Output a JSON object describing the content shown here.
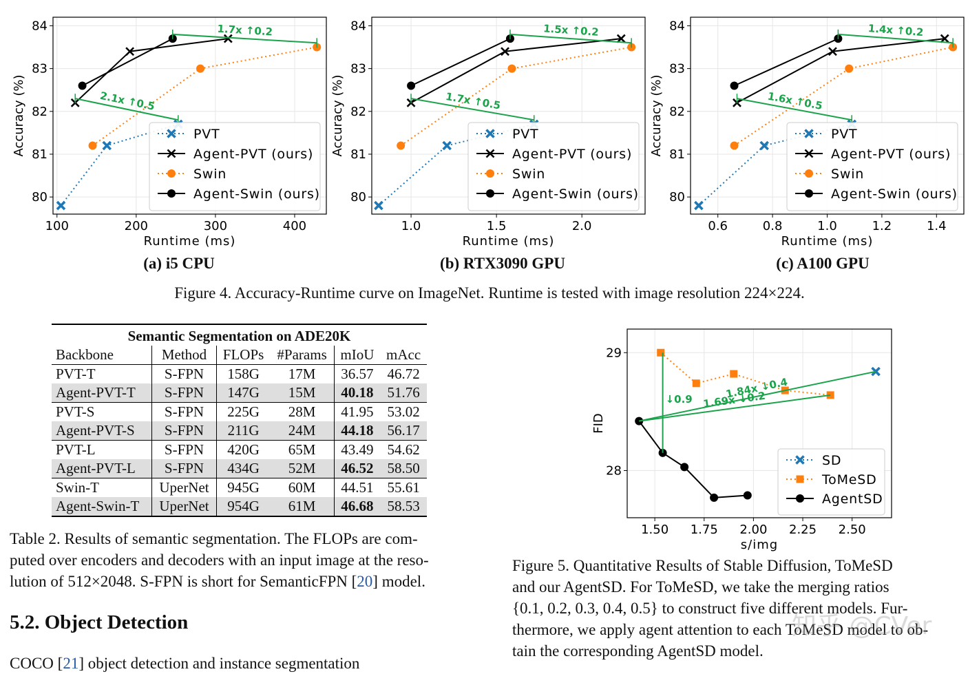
{
  "chart_data": [
    {
      "type": "line",
      "id": "a",
      "caption": "(a) i5 CPU",
      "xlabel": "Runtime (ms)",
      "ylabel": "Accuracy (%)",
      "xlim": [
        95,
        440
      ],
      "ylim": [
        79.6,
        84.2
      ],
      "xticks": [
        100,
        200,
        300,
        400
      ],
      "xtick_labels": [
        "100",
        "200",
        "300",
        "400"
      ],
      "yticks": [
        80,
        81,
        82,
        83,
        84
      ],
      "series": [
        {
          "name": "PVT",
          "color": "#1f77b4",
          "style": "dotted",
          "marker": "X",
          "x": [
            105,
            163,
            253
          ],
          "y": [
            79.8,
            81.2,
            81.7
          ]
        },
        {
          "name": "Agent-PVT (ours)",
          "color": "#000000",
          "style": "solid",
          "marker": "x",
          "x": [
            123,
            192,
            316
          ],
          "y": [
            82.2,
            83.4,
            83.7
          ]
        },
        {
          "name": "Swin",
          "color": "#ff7f0e",
          "style": "dotted",
          "marker": "o",
          "x": [
            145,
            281,
            428
          ],
          "y": [
            81.2,
            83.0,
            83.5
          ]
        },
        {
          "name": "Agent-Swin (ours)",
          "color": "#000000",
          "style": "solid",
          "marker": "o",
          "x": [
            132,
            246
          ],
          "y": [
            82.6,
            83.7
          ]
        }
      ],
      "annotations": [
        {
          "text": "2.1x ↑0.5",
          "from": [
            123,
            82.3
          ],
          "to": [
            253,
            81.8
          ]
        },
        {
          "text": "1.7x ↑0.2",
          "from": [
            246,
            83.8
          ],
          "to": [
            428,
            83.6
          ]
        }
      ]
    },
    {
      "type": "line",
      "id": "b",
      "caption": "(b) RTX3090 GPU",
      "xlabel": "Runtime (ms)",
      "ylabel": "Accuracy (%)",
      "xlim": [
        0.77,
        2.37
      ],
      "ylim": [
        79.6,
        84.2
      ],
      "xticks": [
        1.0,
        1.5,
        2.0
      ],
      "xtick_labels": [
        "1.0",
        "1.5",
        "2.0"
      ],
      "yticks": [
        80,
        81,
        82,
        83,
        84
      ],
      "series": [
        {
          "name": "PVT",
          "color": "#1f77b4",
          "style": "dotted",
          "marker": "X",
          "x": [
            0.81,
            1.21,
            1.72
          ],
          "y": [
            79.8,
            81.2,
            81.7
          ]
        },
        {
          "name": "Agent-PVT (ours)",
          "color": "#000000",
          "style": "solid",
          "marker": "x",
          "x": [
            1.0,
            1.55,
            2.23
          ],
          "y": [
            82.2,
            83.4,
            83.7
          ]
        },
        {
          "name": "Swin",
          "color": "#ff7f0e",
          "style": "dotted",
          "marker": "o",
          "x": [
            0.94,
            1.59,
            2.29
          ],
          "y": [
            81.2,
            83.0,
            83.5
          ]
        },
        {
          "name": "Agent-Swin (ours)",
          "color": "#000000",
          "style": "solid",
          "marker": "o",
          "x": [
            1.0,
            1.58
          ],
          "y": [
            82.6,
            83.7
          ]
        }
      ],
      "annotations": [
        {
          "text": "1.7x ↑0.5",
          "from": [
            1.0,
            82.3
          ],
          "to": [
            1.72,
            81.8
          ]
        },
        {
          "text": "1.5x ↑0.2",
          "from": [
            1.58,
            83.8
          ],
          "to": [
            2.29,
            83.6
          ]
        }
      ]
    },
    {
      "type": "line",
      "id": "c",
      "caption": "(c) A100 GPU",
      "xlabel": "Runtime (ms)",
      "ylabel": "Accuracy (%)",
      "xlim": [
        0.5,
        1.5
      ],
      "ylim": [
        79.6,
        84.2
      ],
      "xticks": [
        0.6,
        0.8,
        1.0,
        1.2,
        1.4
      ],
      "xtick_labels": [
        "0.6",
        "0.8",
        "1.0",
        "1.2",
        "1.4"
      ],
      "yticks": [
        80,
        81,
        82,
        83,
        84
      ],
      "series": [
        {
          "name": "PVT",
          "color": "#1f77b4",
          "style": "dotted",
          "marker": "X",
          "x": [
            0.53,
            0.77,
            1.09
          ],
          "y": [
            79.8,
            81.2,
            81.7
          ]
        },
        {
          "name": "Agent-PVT (ours)",
          "color": "#000000",
          "style": "solid",
          "marker": "x",
          "x": [
            0.67,
            1.02,
            1.43
          ],
          "y": [
            82.2,
            83.4,
            83.7
          ]
        },
        {
          "name": "Swin",
          "color": "#ff7f0e",
          "style": "dotted",
          "marker": "o",
          "x": [
            0.66,
            1.08,
            1.46
          ],
          "y": [
            81.2,
            83.0,
            83.5
          ]
        },
        {
          "name": "Agent-Swin (ours)",
          "color": "#000000",
          "style": "solid",
          "marker": "o",
          "x": [
            0.66,
            1.04
          ],
          "y": [
            82.6,
            83.7
          ]
        }
      ],
      "annotations": [
        {
          "text": "1.6x ↑0.5",
          "from": [
            0.67,
            82.3
          ],
          "to": [
            1.09,
            81.8
          ]
        },
        {
          "text": "1.4x ↑0.2",
          "from": [
            1.04,
            83.8
          ],
          "to": [
            1.46,
            83.6
          ]
        }
      ]
    },
    {
      "type": "line",
      "id": "fid",
      "xlabel": "s/img",
      "ylabel": "FID",
      "xlim": [
        1.36,
        2.7
      ],
      "ylim": [
        27.6,
        29.2
      ],
      "xticks": [
        1.5,
        1.75,
        2.0,
        2.25,
        2.5
      ],
      "xtick_labels": [
        "1.50",
        "1.75",
        "2.00",
        "2.25",
        "2.50"
      ],
      "yticks": [
        28,
        29
      ],
      "series": [
        {
          "name": "SD",
          "color": "#1f77b4",
          "style": "dotted",
          "marker": "X",
          "x": [
            2.62
          ],
          "y": [
            28.84
          ]
        },
        {
          "name": "ToMeSD",
          "color": "#ff7f0e",
          "style": "dotted",
          "marker": "s",
          "x": [
            1.53,
            1.71,
            1.9,
            2.16,
            2.39
          ],
          "y": [
            29.0,
            28.74,
            28.82,
            28.68,
            28.64
          ]
        },
        {
          "name": "AgentSD",
          "color": "#000000",
          "style": "solid",
          "marker": "o",
          "x": [
            1.42,
            1.54,
            1.65,
            1.8,
            1.97
          ],
          "y": [
            28.42,
            28.15,
            28.03,
            27.77,
            27.79
          ]
        }
      ],
      "annotations": [
        {
          "text": "↓0.9",
          "from": [
            1.54,
            29.0
          ],
          "to": [
            1.54,
            28.15
          ]
        },
        {
          "text": "1.84x ↓0.4",
          "from": [
            2.62,
            28.84
          ],
          "to": [
            1.42,
            28.42
          ]
        },
        {
          "text": "1.69x ↓0.2",
          "from": [
            2.39,
            28.64
          ],
          "to": [
            1.42,
            28.42
          ]
        }
      ]
    }
  ],
  "figure4_caption": "Figure 4. Accuracy-Runtime curve on ImageNet. Runtime is tested with image resolution 224×224.",
  "table2": {
    "title": "Semantic Segmentation on ADE20K",
    "headers": [
      "Backbone",
      "Method",
      "FLOPs",
      "#Params",
      "mIoU",
      "mAcc"
    ],
    "rows": [
      [
        "PVT-T",
        "S-FPN",
        "158G",
        "17M",
        "36.57",
        "46.72"
      ],
      [
        "Agent-PVT-T",
        "S-FPN",
        "147G",
        "15M",
        "40.18",
        "51.76"
      ],
      [
        "PVT-S",
        "S-FPN",
        "225G",
        "28M",
        "41.95",
        "53.02"
      ],
      [
        "Agent-PVT-S",
        "S-FPN",
        "211G",
        "24M",
        "44.18",
        "56.17"
      ],
      [
        "PVT-L",
        "S-FPN",
        "420G",
        "65M",
        "43.49",
        "54.62"
      ],
      [
        "Agent-PVT-L",
        "S-FPN",
        "434G",
        "52M",
        "46.52",
        "58.50"
      ],
      [
        "Swin-T",
        "UperNet",
        "945G",
        "60M",
        "44.51",
        "55.61"
      ],
      [
        "Agent-Swin-T",
        "UperNet",
        "954G",
        "61M",
        "46.68",
        "58.53"
      ]
    ],
    "caption_line1": "Table 2. Results of semantic segmentation. The FLOPs are com-",
    "caption_line2": "puted over encoders and decoders with an input image at the reso-",
    "caption_line3a": "lution of 512×2048. S-FPN is short for SemanticFPN [",
    "caption_ref": "20",
    "caption_line3b": "] model."
  },
  "section_title": "5.2. Object Detection",
  "body_line_start": "COCO [",
  "body_ref": "21",
  "body_line_rest": "] object detection and instance segmentation",
  "figure5_caption": {
    "line1": "Figure 5.   Quantitative Results of Stable Diffusion, ToMeSD",
    "line2": "and our AgentSD. For ToMeSD, we take the merging ratios",
    "line3": "{0.1, 0.2, 0.3, 0.4, 0.5} to construct five different models. Fur-",
    "line4": "thermore, we apply agent attention to each ToMeSD model to ob-",
    "line5": "tain the corresponding AgentSD model."
  },
  "watermark": "知乎 @CVer"
}
